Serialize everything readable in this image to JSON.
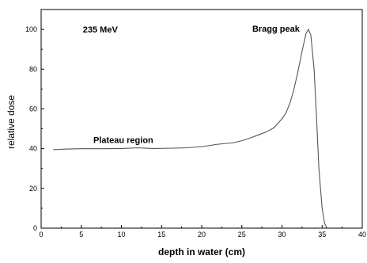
{
  "chart_data": {
    "type": "line",
    "title": "",
    "xlabel": "depth in water (cm)",
    "ylabel": "relative dose",
    "xlim": [
      0,
      40
    ],
    "ylim": [
      0,
      110
    ],
    "x_ticks": [
      0,
      5,
      10,
      15,
      20,
      25,
      30,
      35,
      40
    ],
    "y_ticks": [
      0,
      20,
      40,
      60,
      80,
      100
    ],
    "x_tick_labels": [
      "0",
      "5",
      "10",
      "15",
      "20",
      "25",
      "30",
      "35",
      "40"
    ],
    "y_tick_labels": [
      "0",
      "20",
      "40",
      "60",
      "80",
      "100"
    ],
    "grid": false,
    "line_color": "#555555",
    "series": [
      {
        "x": [
          1.5,
          3,
          5,
          8,
          10,
          12,
          14,
          16,
          18,
          20,
          21,
          22,
          23,
          24,
          25,
          26,
          27,
          28,
          29,
          30,
          30.5,
          31,
          31.5,
          32,
          32.5,
          33,
          33.3,
          33.6,
          34,
          34.3,
          34.6,
          35,
          35.3,
          35.6
        ],
        "y": [
          39.5,
          39.8,
          40.0,
          40.0,
          40.1,
          40.4,
          40.1,
          40.2,
          40.4,
          41.0,
          41.6,
          42.2,
          42.6,
          43.0,
          44.0,
          45.3,
          46.8,
          48.3,
          50.5,
          55.0,
          58.0,
          63.0,
          70.0,
          79.0,
          89.0,
          98.0,
          100.0,
          97.0,
          80.0,
          56.0,
          30.0,
          10.0,
          2.5,
          0.0
        ]
      }
    ],
    "annotations": [
      {
        "text": "235 MeV",
        "x": 5.2,
        "y": 100
      },
      {
        "text": "Bragg peak",
        "x": 26.3,
        "y": 100.5
      },
      {
        "text": "Plateau region",
        "x": 6.5,
        "y": 44.5
      }
    ]
  }
}
